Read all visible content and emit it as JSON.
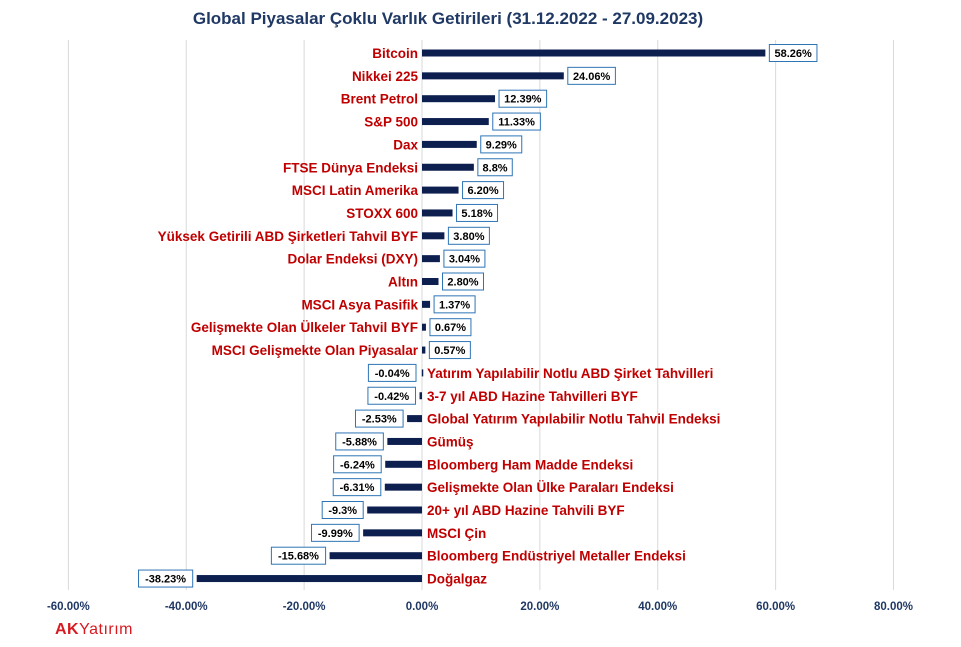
{
  "chart_data": {
    "type": "bar",
    "orientation": "horizontal",
    "title": "Global Piyasalar Çoklu Varlık Getirileri (31.12.2022 - 27.09.2023)",
    "xlim": [
      -60,
      80
    ],
    "xticks": [
      -60,
      -40,
      -20,
      0,
      20,
      40,
      60,
      80
    ],
    "xtick_labels": [
      "-60.00%",
      "-40.00%",
      "-20.00%",
      "0.00%",
      "20.00%",
      "40.00%",
      "60.00%",
      "80.00%"
    ],
    "grid": true,
    "categories": [
      "Bitcoin",
      "Nikkei 225",
      "Brent Petrol",
      "S&P 500",
      "Dax",
      "FTSE Dünya Endeksi",
      "MSCI Latin Amerika",
      "STOXX 600",
      "Yüksek Getirili ABD Şirketleri Tahvil BYF",
      "Dolar Endeksi (DXY)",
      "Altın",
      "MSCI Asya Pasifik",
      "Gelişmekte Olan Ülkeler Tahvil BYF",
      "MSCI Gelişmekte Olan Piyasalar",
      "Yatırım Yapılabilir Notlu  ABD Şirket Tahvilleri",
      "3-7 yıl ABD Hazine Tahvilleri BYF",
      "Global Yatırım Yapılabilir Notlu Tahvil Endeksi",
      "Gümüş",
      "Bloomberg Ham Madde Endeksi",
      "Gelişmekte Olan Ülke Paraları Endeksi",
      "20+ yıl ABD Hazine Tahvili BYF",
      "MSCI Çin",
      "Bloomberg Endüstriyel Metaller Endeksi",
      "Doğalgaz"
    ],
    "values": [
      58.26,
      24.06,
      12.39,
      11.33,
      9.29,
      8.8,
      6.2,
      5.18,
      3.8,
      3.04,
      2.8,
      1.37,
      0.67,
      0.57,
      -0.04,
      -0.42,
      -2.53,
      -5.88,
      -6.24,
      -6.31,
      -9.3,
      -9.99,
      -15.68,
      -38.23
    ],
    "value_labels": [
      "58.26%",
      "24.06%",
      "12.39%",
      "11.33%",
      "9.29%",
      "8.8%",
      "6.20%",
      "5.18%",
      "3.80%",
      "3.04%",
      "2.80%",
      "1.37%",
      "0.67%",
      "0.57%",
      "-0.04%",
      "-0.42%",
      "-2.53%",
      "-5.88%",
      "-6.24%",
      "-6.31%",
      "-9.3%",
      "-9.99%",
      "-15.68%",
      "-38.23%"
    ],
    "bar_color": "#0d1f4f",
    "label_color": "#c00000",
    "label_box_border": "#2e75b6"
  },
  "footer": {
    "logo_ak": "AK",
    "logo_rest": "Yatırım",
    "logo_color": "#d71920"
  }
}
